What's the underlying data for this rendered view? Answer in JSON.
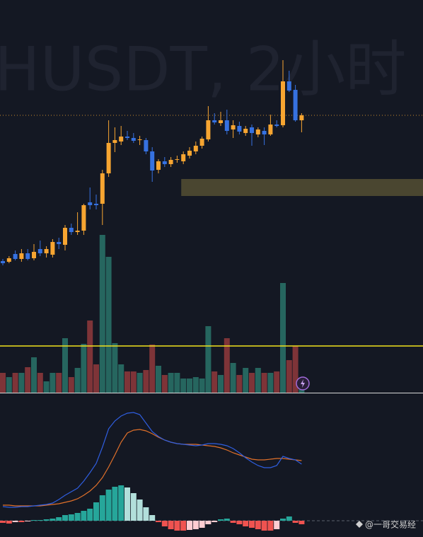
{
  "chart_data": [
    {
      "type": "candlestick",
      "title": "HUSDT, 2小时",
      "open": [
        31,
        30,
        41,
        34,
        42,
        35,
        48,
        42,
        40,
        58,
        54,
        78,
        72,
        74,
        114,
        112,
        112,
        155,
        198,
        200,
        207,
        205,
        202,
        202,
        186,
        160,
        172,
        168,
        174,
        172,
        180,
        186,
        194,
        203,
        230,
        226,
        230,
        217,
        222,
        212,
        220,
        210,
        215,
        210,
        224,
        223,
        285,
        273,
        230
      ],
      "high": [
        34,
        38,
        46,
        48,
        48,
        55,
        60,
        52,
        62,
        64,
        82,
        84,
        100,
        112,
        135,
        125,
        160,
        230,
        220,
        222,
        215,
        212,
        208,
        205,
        192,
        175,
        178,
        178,
        180,
        186,
        192,
        200,
        207,
        250,
        240,
        242,
        245,
        230,
        228,
        222,
        224,
        220,
        220,
        238,
        230,
        315,
        300,
        280,
        240
      ],
      "low": [
        25,
        28,
        32,
        30,
        32,
        32,
        38,
        36,
        36,
        48,
        46,
        68,
        68,
        68,
        104,
        104,
        82,
        150,
        185,
        195,
        202,
        198,
        195,
        182,
        143,
        155,
        164,
        164,
        170,
        168,
        176,
        182,
        190,
        200,
        224,
        222,
        210,
        205,
        210,
        208,
        194,
        206,
        195,
        208,
        220,
        220,
        270,
        228,
        213
      ],
      "close": [
        28,
        35,
        34,
        42,
        34,
        44,
        42,
        48,
        58,
        55,
        78,
        72,
        74,
        110,
        110,
        110,
        155,
        198,
        202,
        207,
        205,
        201,
        203,
        186,
        159,
        172,
        168,
        174,
        175,
        182,
        187,
        194,
        204,
        230,
        227,
        230,
        215,
        223,
        214,
        218,
        212,
        217,
        210,
        224,
        222,
        285,
        272,
        230,
        237
      ],
      "up_color": "#f7a531",
      "down_color": "#3671e0",
      "ylim": [
        -155,
        400
      ],
      "zone_start": 29,
      "zone_low": 123,
      "zone_high": 147,
      "zone_color": "#4a4630"
    },
    {
      "type": "bar",
      "values": [
        28,
        22,
        28,
        28,
        36,
        50,
        28,
        16,
        28,
        28,
        77,
        22,
        35,
        69,
        102,
        40,
        223,
        192,
        70,
        40,
        30,
        30,
        28,
        32,
        68,
        38,
        25,
        28,
        28,
        20,
        20,
        22,
        20,
        94,
        30,
        25,
        77,
        42,
        25,
        35,
        28,
        35,
        28,
        28,
        30,
        155,
        46,
        66,
        10
      ],
      "up_color": "#26665f",
      "down_color": "#7e3438",
      "ylim": [
        0,
        555
      ],
      "hline": 66,
      "hline_color": "#f2e21c"
    },
    {
      "type": "macd",
      "dif": [
        20,
        19,
        19,
        20,
        20,
        21,
        22,
        23,
        25,
        30,
        36,
        41,
        46,
        56,
        68,
        81,
        104,
        130,
        141,
        148,
        152,
        153,
        150,
        138,
        126,
        119,
        114,
        111,
        109,
        108,
        107,
        106,
        107,
        109,
        109,
        108,
        106,
        102,
        96,
        89,
        83,
        78,
        75,
        75,
        78,
        91,
        88,
        86,
        80
      ],
      "dea": [
        22,
        22,
        21,
        21,
        21,
        21,
        21,
        22,
        23,
        24,
        26,
        28,
        31,
        36,
        42,
        50,
        61,
        76,
        93,
        111,
        124,
        128,
        129,
        127,
        123,
        118,
        114,
        111,
        109,
        108,
        108,
        108,
        107,
        106,
        105,
        103,
        100,
        96,
        93,
        90,
        87,
        86,
        86,
        87,
        88,
        88,
        87,
        86,
        85
      ],
      "hist": [
        -3,
        -4,
        -2,
        -2,
        -1,
        1,
        1,
        2,
        3,
        5,
        8,
        9,
        11,
        14,
        17,
        26,
        36,
        44,
        48,
        50,
        47,
        39,
        30,
        19,
        8,
        -2,
        -8,
        -12,
        -14,
        -14,
        -13,
        -12,
        -10,
        -5,
        -2,
        2,
        3,
        -3,
        -5,
        -8,
        -10,
        -12,
        -14,
        -14,
        -12,
        3,
        6,
        -3,
        -5
      ],
      "dif_color": "#2f5ee0",
      "dea_color": "#e0702a",
      "hist_colors": [
        "#26a69a",
        "#b2dfdb",
        "#ef5350",
        "#ffcdd2"
      ],
      "ylim": [
        -23,
        180
      ]
    }
  ],
  "watermark": "@一哥交易经"
}
